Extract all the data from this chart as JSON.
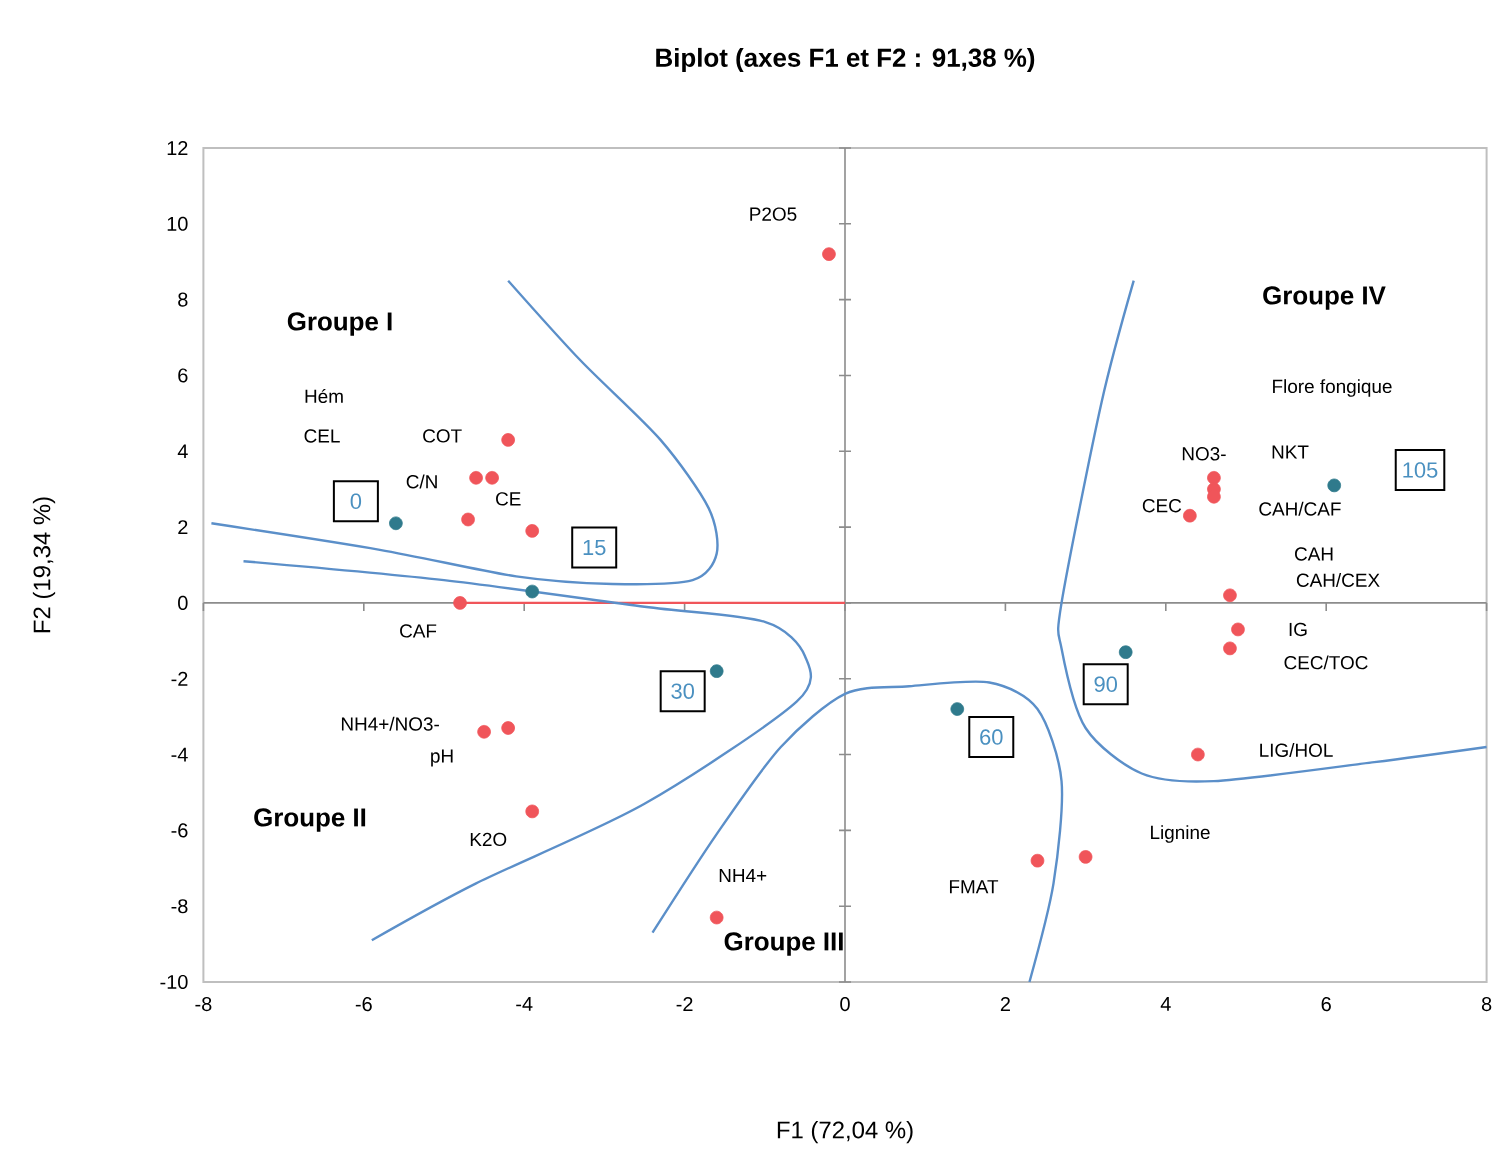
{
  "chart_data": {
    "type": "scatter",
    "title": "Biplot (axes F1 et F2 : 91,38 %)",
    "xlabel": "F1 (72,04 %)",
    "ylabel": "F2 (19,34 %)",
    "xlim": [
      -8,
      8
    ],
    "ylim": [
      -10,
      12
    ],
    "xticks": [
      -8,
      -6,
      -4,
      -2,
      0,
      2,
      4,
      6,
      8
    ],
    "yticks": [
      -10,
      -8,
      -6,
      -4,
      -2,
      0,
      2,
      4,
      6,
      8,
      10,
      12
    ],
    "marker": "circle",
    "series": [
      {
        "color": "#f0555a",
        "x": [
          -0.2,
          -4.2,
          -4.6,
          -4.4,
          -4.7,
          -3.9,
          -4.8,
          -4.5,
          -4.2,
          -3.9,
          -1.6,
          4.6,
          4.6,
          4.6,
          4.3,
          4.8,
          4.9,
          4.8,
          4.4,
          3.0,
          2.4
        ],
        "values": [
          9.2,
          4.3,
          3.3,
          3.3,
          2.2,
          1.9,
          0.0,
          -3.4,
          -3.3,
          -5.5,
          -8.3,
          3.3,
          3.0,
          2.8,
          2.3,
          0.2,
          -0.7,
          -1.2,
          -4.0,
          -6.7,
          -6.8
        ]
      },
      {
        "color": "#2f7a8c",
        "x": [
          -5.6,
          -3.9,
          -1.6,
          1.4,
          3.5,
          6.1
        ],
        "values": [
          2.1,
          0.3,
          -1.8,
          -2.8,
          -1.3,
          3.1
        ]
      },
      {
        "type": "line",
        "marker": "none",
        "color": "#f0555a",
        "x": [
          -4.8,
          0
        ],
        "values": [
          0.0,
          0.0
        ]
      },
      {
        "type": "line",
        "marker": "none",
        "color": "#5b8fc9",
        "x": [
          -4.2,
          -3.3,
          -2.3,
          -1.7,
          -1.6,
          -1.9,
          -2.9,
          -4.1,
          -5.8,
          -7.9
        ],
        "values": [
          8.5,
          6.4,
          4.3,
          2.5,
          1.3,
          0.6,
          0.5,
          0.7,
          1.4,
          2.1
        ]
      },
      {
        "type": "line",
        "marker": "none",
        "color": "#5b8fc9",
        "x": [
          -7.5,
          -5.0,
          -2.5,
          -1.0,
          -0.5,
          -0.6,
          -2.5,
          -4.6,
          -5.9
        ],
        "values": [
          1.1,
          0.6,
          -0.1,
          -0.5,
          -1.4,
          -2.6,
          -5.3,
          -7.4,
          -8.9
        ]
      },
      {
        "type": "line",
        "marker": "none",
        "color": "#5b8fc9",
        "x": [
          -2.4,
          -1.6,
          -0.8,
          0.0,
          0.8,
          1.8,
          2.4,
          2.7,
          2.6,
          2.3
        ],
        "values": [
          -8.7,
          -6.1,
          -3.8,
          -2.4,
          -2.2,
          -2.1,
          -2.8,
          -4.7,
          -7.4,
          -10
        ]
      },
      {
        "type": "line",
        "marker": "none",
        "color": "#5b8fc9",
        "x": [
          3.6,
          3.2,
          2.7,
          2.7,
          3.0,
          3.7,
          4.6,
          6.6,
          8
        ],
        "values": [
          8.5,
          5.3,
          0.0,
          -1.2,
          -3.3,
          -4.5,
          -4.7,
          -4.2,
          -3.8
        ]
      }
    ],
    "annotations": [
      {
        "text": "P2O5",
        "x": -0.2,
        "y": 9.2
      },
      {
        "text": "COT",
        "x": -4.2,
        "y": 4.3
      },
      {
        "text": "C/N",
        "x": -4.7,
        "y": 2.2
      },
      {
        "text": "CE",
        "x": -3.9,
        "y": 1.9
      },
      {
        "text": "CAF",
        "x": -4.8,
        "y": 0.0
      },
      {
        "text": "NH4+/NO3-",
        "x": -4.5,
        "y": -3.4
      },
      {
        "text": "K2O",
        "x": -3.9,
        "y": -5.5
      },
      {
        "text": "NH4+",
        "x": -1.6,
        "y": -8.3
      },
      {
        "text": "NO3-",
        "x": 4.6,
        "y": 3.3
      },
      {
        "text": "CEC",
        "x": 4.3,
        "y": 2.3
      },
      {
        "text": "CAH/CAF",
        "x": 4.6,
        "y": 2.8
      },
      {
        "text": "IG",
        "x": 4.9,
        "y": -0.7
      },
      {
        "text": "CEC/TOC",
        "x": 4.8,
        "y": -1.2
      },
      {
        "text": "FMAT",
        "x": 2.4,
        "y": -6.8
      },
      {
        "text": "0",
        "x": -5.6,
        "y": 2.1
      },
      {
        "text": "15",
        "x": -3.9,
        "y": 0.3
      },
      {
        "text": "30",
        "x": -1.6,
        "y": -1.8
      },
      {
        "text": "60",
        "x": 1.4,
        "y": -2.8
      },
      {
        "text": "90",
        "x": 3.5,
        "y": -1.3
      },
      "Hém",
      "CEL",
      "pH",
      "Flore fongique",
      "NKT",
      "CAH",
      "CAH/CEX",
      "LIG/HOL",
      "Lignine",
      "105",
      "Groupe I",
      "Groupe II",
      "Groupe III",
      "Groupe IV"
    ]
  }
}
